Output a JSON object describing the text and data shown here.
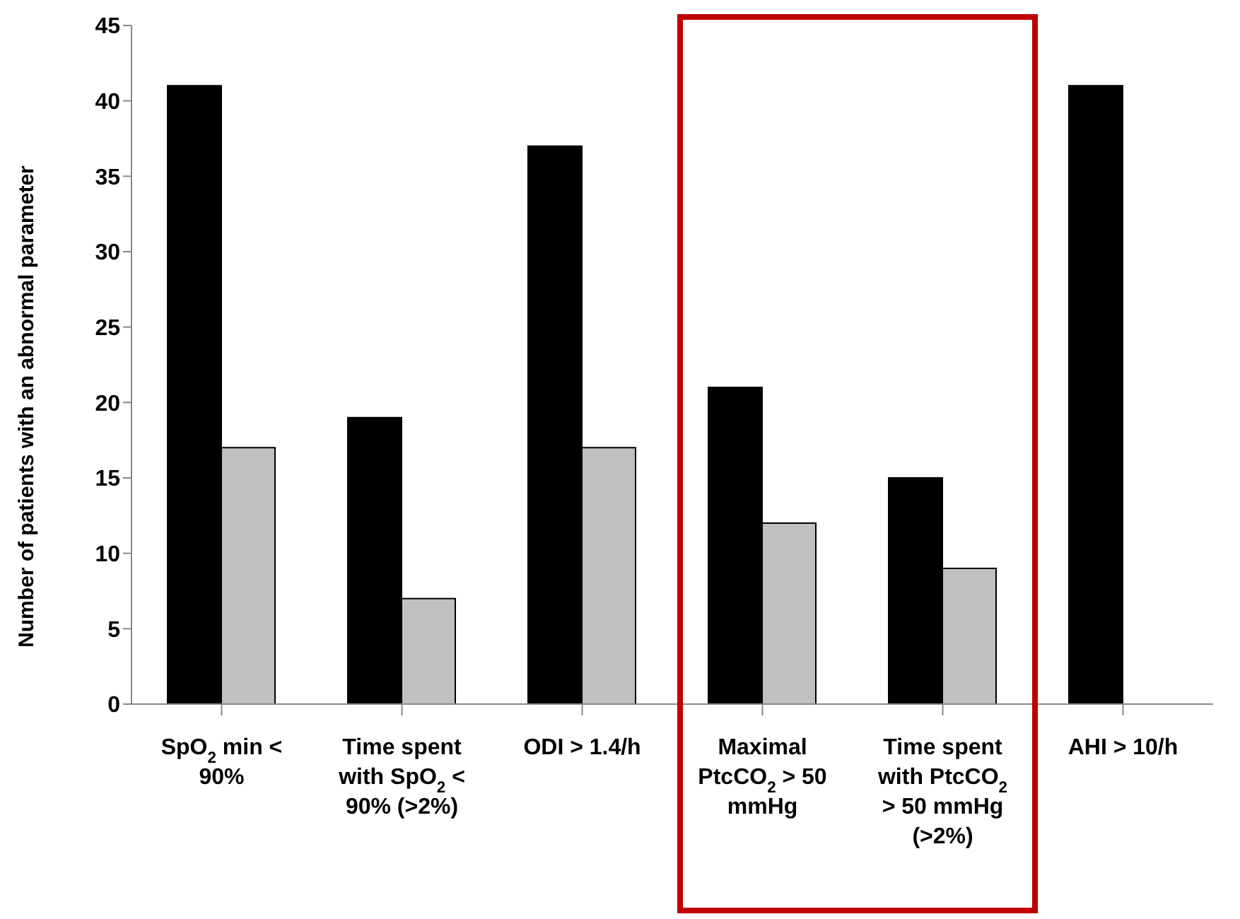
{
  "chart_data": {
    "type": "bar",
    "categories": [
      "SpO$_{2}$ min < 90%",
      "Time spent with SpO$_{2}$ < 90% (>2%)",
      "ODI > 1.4/h",
      "Maximal PtcCO$_{2}$ > 50 mmHg",
      "Time spent with PtcCO$_{2}$ > 50 mmHg (>2%)",
      "AHI > 10/h"
    ],
    "ylabel": "Number of patients with an abnormal parameter",
    "series": [
      {
        "color": "#000000",
        "values": [
          41,
          19,
          37,
          21,
          15,
          41
        ]
      },
      {
        "color": "#c0c0c0",
        "values": [
          17,
          7,
          17,
          12,
          9,
          null
        ]
      }
    ],
    "ylim": [
      0,
      45
    ],
    "yticks": [
      0,
      5,
      10,
      15,
      20,
      25,
      30,
      35,
      40,
      45
    ],
    "grid": false,
    "legend": false
  }
}
